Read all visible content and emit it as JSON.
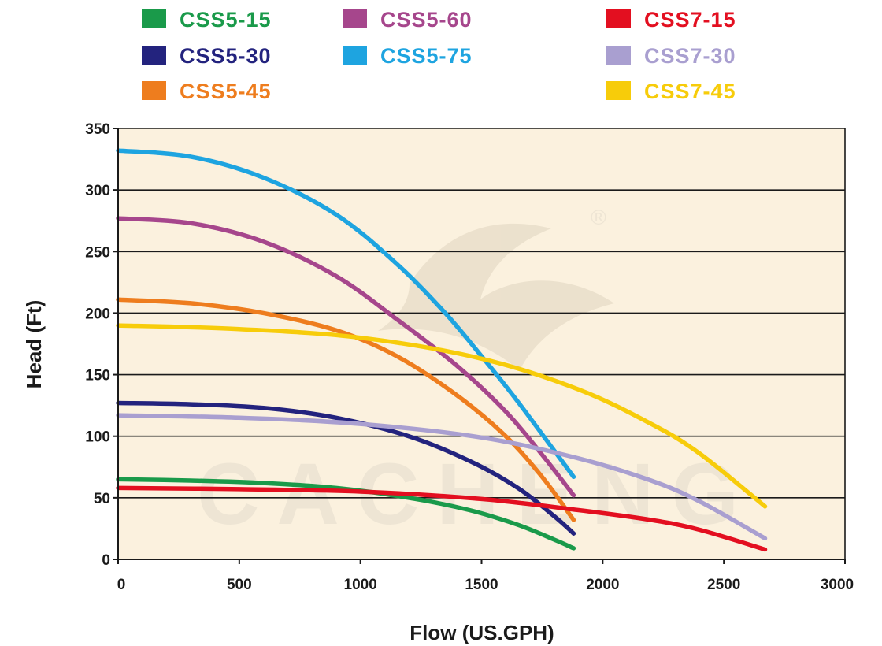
{
  "chart_data": {
    "type": "line",
    "xlabel": "Flow (US.GPH)",
    "ylabel": "Head (Ft)",
    "xlim": [
      0,
      3000
    ],
    "ylim": [
      0,
      350
    ],
    "x_ticks": [
      0,
      500,
      1000,
      1500,
      2000,
      2500,
      3000
    ],
    "y_ticks": [
      0,
      50,
      100,
      150,
      200,
      250,
      300,
      350
    ],
    "grid": "horizontal",
    "plot_background": "#fbf1de",
    "legend_position": "top",
    "series": [
      {
        "name": "CSS5-15",
        "color": "#1a9a4a",
        "x": [
          0,
          300,
          600,
          900,
          1200,
          1450,
          1650,
          1800,
          1880
        ],
        "y": [
          65,
          64,
          62,
          58,
          50,
          40,
          28,
          16,
          9
        ]
      },
      {
        "name": "CSS5-30",
        "color": "#23237e",
        "x": [
          0,
          300,
          600,
          900,
          1200,
          1450,
          1650,
          1800,
          1880
        ],
        "y": [
          127,
          126,
          123,
          115,
          100,
          80,
          58,
          35,
          21
        ]
      },
      {
        "name": "CSS5-45",
        "color": "#ee7d1e",
        "x": [
          0,
          300,
          600,
          900,
          1150,
          1400,
          1600,
          1750,
          1880
        ],
        "y": [
          211,
          208,
          200,
          186,
          165,
          133,
          100,
          67,
          32
        ]
      },
      {
        "name": "CSS5-60",
        "color": "#a6468c",
        "x": [
          0,
          300,
          600,
          900,
          1150,
          1400,
          1600,
          1750,
          1880
        ],
        "y": [
          277,
          273,
          258,
          230,
          195,
          157,
          120,
          85,
          52
        ]
      },
      {
        "name": "CSS5-75",
        "color": "#1ea4e0",
        "x": [
          0,
          300,
          600,
          900,
          1150,
          1350,
          1500,
          1650,
          1880
        ],
        "y": [
          332,
          327,
          310,
          280,
          240,
          200,
          165,
          128,
          67
        ]
      },
      {
        "name": "CSS7-15",
        "color": "#e30f20",
        "x": [
          0,
          500,
          1000,
          1500,
          1900,
          2200,
          2400,
          2670
        ],
        "y": [
          58,
          57,
          55,
          49,
          40,
          32,
          24,
          8
        ]
      },
      {
        "name": "CSS7-30",
        "color": "#a99fd0",
        "x": [
          0,
          500,
          1000,
          1500,
          1900,
          2200,
          2400,
          2670
        ],
        "y": [
          117,
          115,
          110,
          99,
          82,
          64,
          47,
          17
        ]
      },
      {
        "name": "CSS7-45",
        "color": "#f7cc0a",
        "x": [
          0,
          500,
          1000,
          1500,
          1900,
          2200,
          2400,
          2670
        ],
        "y": [
          190,
          187,
          180,
          163,
          138,
          110,
          86,
          43
        ]
      }
    ]
  },
  "watermark": {
    "text": "CACHENG",
    "registered_mark": "®"
  }
}
